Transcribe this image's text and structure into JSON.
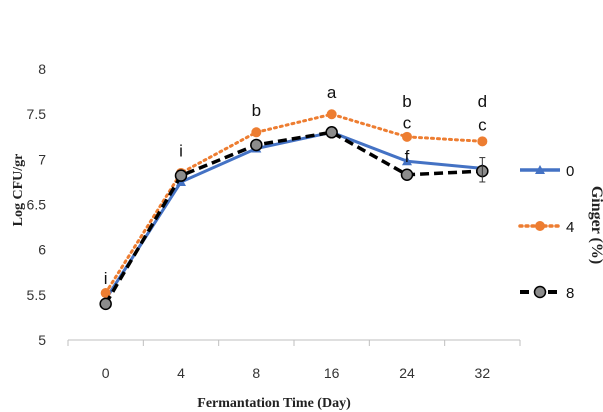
{
  "chart_data": {
    "type": "line",
    "xlabel": "Fermantation Time (Day)",
    "ylabel": "Log CFU/gr",
    "categories": [
      "0",
      "4",
      "8",
      "16",
      "24",
      "32"
    ],
    "yticks": [
      "5",
      "5.5",
      "6",
      "6.5",
      "7",
      "7.5",
      "8"
    ],
    "ylim": [
      5,
      8.3
    ],
    "legend_title": "Ginger (%)",
    "legend_position": "right",
    "series": [
      {
        "name": "0",
        "values": [
          5.45,
          6.75,
          7.12,
          7.3,
          6.98,
          6.9
        ],
        "color": "#4472c4",
        "style": "solid",
        "marker": "triangle"
      },
      {
        "name": "4",
        "values": [
          5.52,
          6.85,
          7.3,
          7.5,
          7.25,
          7.2
        ],
        "color": "#ed7d31",
        "style": "dotted",
        "marker": "circle"
      },
      {
        "name": "8",
        "values": [
          5.4,
          6.82,
          7.16,
          7.3,
          6.83,
          6.87
        ],
        "color": "#000000",
        "style": "dashed",
        "marker": "circle-gray"
      }
    ],
    "annotations": [
      {
        "text": "i",
        "x": "0",
        "y": 5.62
      },
      {
        "text": "i",
        "x": "4",
        "y": 7.03
      },
      {
        "text": "b",
        "x": "8",
        "y": 7.48
      },
      {
        "text": "a",
        "x": "16",
        "y": 7.68
      },
      {
        "text": "b",
        "x": "24",
        "y": 7.58
      },
      {
        "text": "c",
        "x": "24",
        "y": 7.34
      },
      {
        "text": "f",
        "x": "24",
        "y": 6.97
      },
      {
        "text": "d",
        "x": "32",
        "y": 7.58
      },
      {
        "text": "c",
        "x": "32",
        "y": 7.32
      }
    ]
  }
}
